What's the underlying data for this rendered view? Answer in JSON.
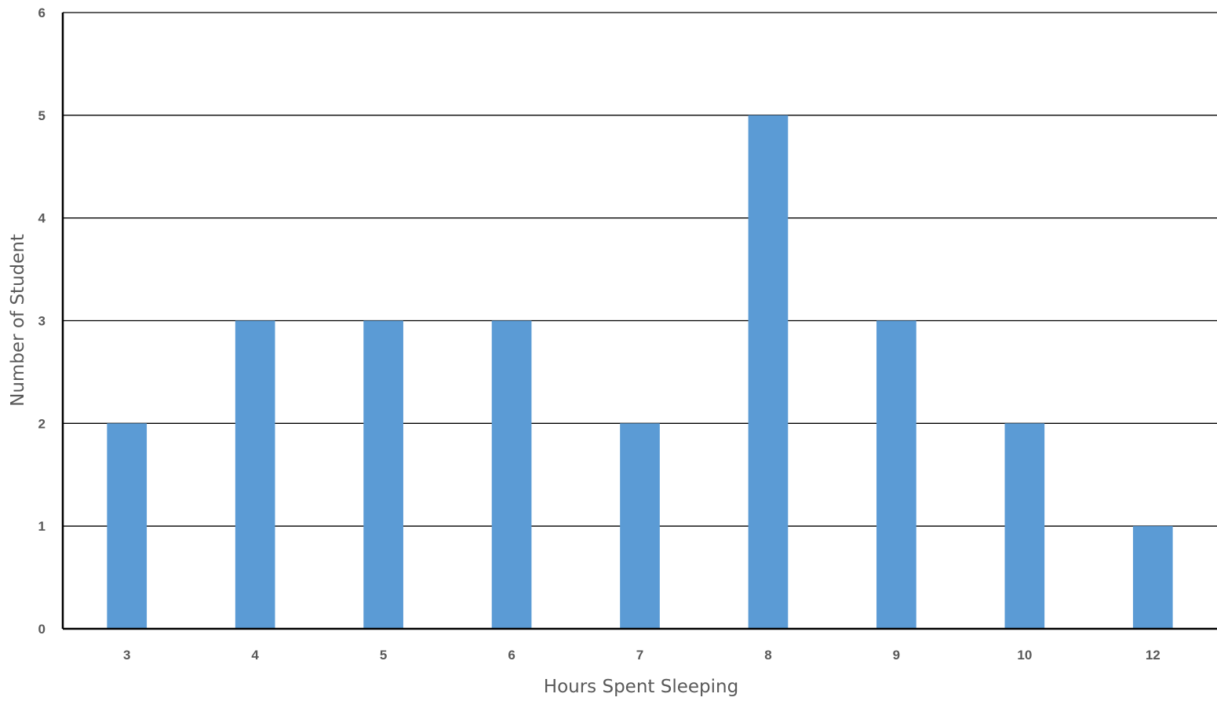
{
  "chart_data": {
    "type": "bar",
    "categories": [
      "3",
      "4",
      "5",
      "6",
      "7",
      "8",
      "9",
      "10",
      "12"
    ],
    "values": [
      2,
      3,
      3,
      3,
      2,
      5,
      3,
      2,
      1
    ],
    "title": "",
    "xlabel": "Hours Spent Sleeping",
    "ylabel": "Number of Student",
    "ylim": [
      0,
      6
    ],
    "yticks": [
      "0",
      "1",
      "2",
      "3",
      "4",
      "5",
      "6"
    ],
    "grid": true,
    "legend": "none",
    "bar_color": "#5B9BD5"
  }
}
